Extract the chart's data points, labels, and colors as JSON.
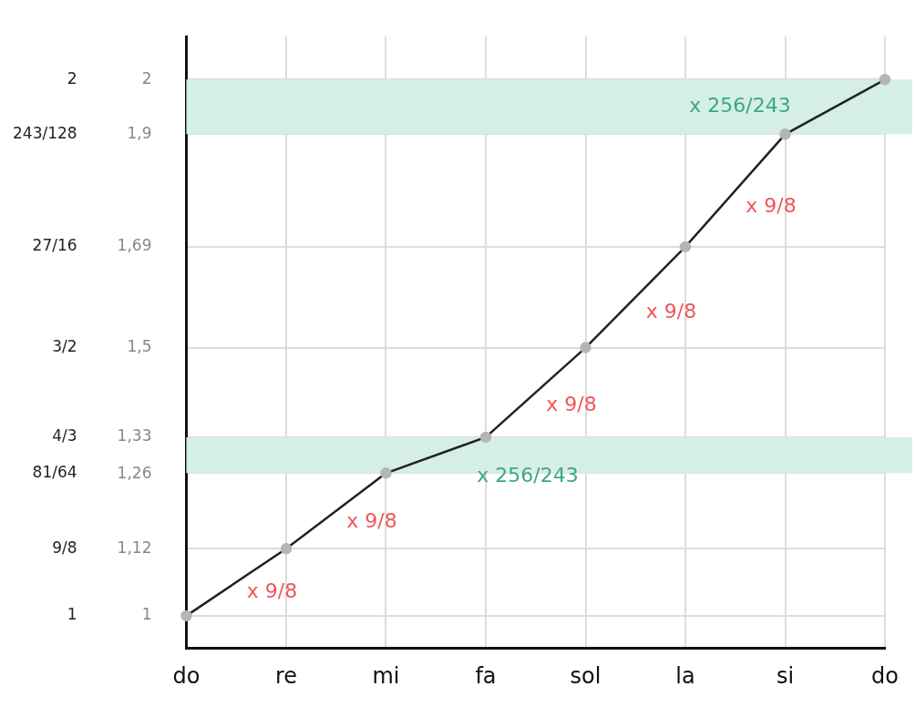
{
  "chart_data": {
    "type": "line",
    "categories": [
      "do",
      "re",
      "mi",
      "fa",
      "sol",
      "la",
      "si",
      "do"
    ],
    "series": [
      {
        "color": "#222222",
        "values": [
          1,
          1.125,
          1.266,
          1.333,
          1.5,
          1.688,
          1.898,
          2
        ]
      }
    ],
    "ylim": [
      0.94,
      2.08
    ],
    "yticks": [
      1,
      {
        "value": 1.125,
        "label": "9/8"
      },
      {
        "value": 1.266,
        "label": "81/64"
      },
      {
        "value": 1.333,
        "label": "4/3"
      },
      {
        "value": 1.5,
        "label": "3/2"
      },
      {
        "value": 1.688,
        "label": "27/16"
      },
      {
        "value": 1.898,
        "label": "243/128"
      },
      2
    ],
    "y2lim": [
      0.94,
      2.08
    ],
    "y2ticks": [
      1,
      {
        "value": 1.125,
        "label": "1,12"
      },
      {
        "value": 1.264,
        "label": "1,26"
      },
      {
        "value": 1.333,
        "label": "1,33"
      },
      {
        "value": 1.5,
        "label": "1,5"
      },
      {
        "value": 1.688,
        "label": "1,69"
      },
      {
        "value": 1.898,
        "label": "1,9"
      },
      2
    ],
    "grid": true,
    "marker": "circle",
    "legend": false,
    "bands": [
      {
        "axis": "y",
        "from": 1.266,
        "to": 1.333,
        "label": "x 256/243",
        "color": "#d5eee7"
      },
      {
        "axis": "y",
        "from": 1.898,
        "to": 2,
        "label": "x 256/243",
        "color": "#d5eee7"
      }
    ],
    "annotations": [
      "x 9/8",
      "x 9/8",
      "x 9/8",
      "x 9/8",
      "x 9/8"
    ]
  }
}
